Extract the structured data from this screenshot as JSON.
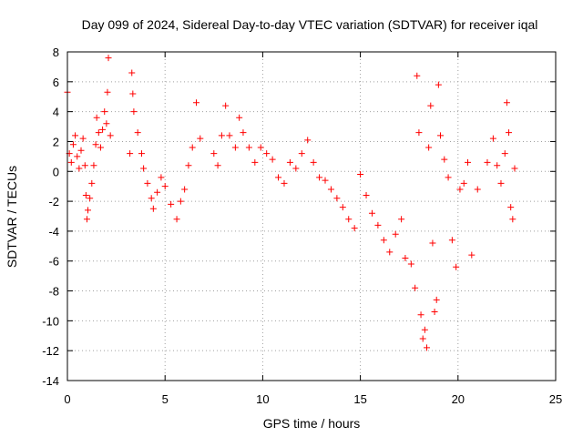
{
  "chart_data": {
    "type": "scatter",
    "title": "Day 099 of 2024, Sidereal Day-to-day VTEC variation (SDTVAR) for receiver iqal",
    "xlabel": "GPS time / hours",
    "ylabel": "SDTVAR / TECUs",
    "xlim": [
      0,
      25
    ],
    "ylim": [
      -14,
      8
    ],
    "xticks": [
      0,
      5,
      10,
      15,
      20,
      25
    ],
    "yticks": [
      -14,
      -12,
      -10,
      -8,
      -6,
      -4,
      -2,
      0,
      2,
      4,
      6,
      8
    ],
    "grid": true,
    "marker": "plus",
    "marker_color": "#ff0000",
    "series": [
      {
        "name": "SDTVAR",
        "points": [
          [
            0.0,
            5.3
          ],
          [
            0.1,
            1.2
          ],
          [
            0.2,
            0.6
          ],
          [
            0.3,
            1.8
          ],
          [
            0.4,
            2.4
          ],
          [
            0.5,
            1.0
          ],
          [
            0.6,
            0.2
          ],
          [
            0.7,
            1.4
          ],
          [
            0.8,
            2.2
          ],
          [
            0.9,
            0.4
          ],
          [
            0.95,
            -1.6
          ],
          [
            1.0,
            -3.2
          ],
          [
            1.05,
            -2.6
          ],
          [
            1.15,
            -1.8
          ],
          [
            1.25,
            -0.8
          ],
          [
            1.35,
            0.4
          ],
          [
            1.45,
            1.8
          ],
          [
            1.5,
            3.6
          ],
          [
            1.6,
            2.6
          ],
          [
            1.7,
            1.6
          ],
          [
            1.8,
            2.8
          ],
          [
            1.9,
            4.0
          ],
          [
            2.0,
            3.2
          ],
          [
            2.05,
            5.3
          ],
          [
            2.1,
            7.6
          ],
          [
            2.2,
            2.4
          ],
          [
            3.2,
            1.2
          ],
          [
            3.3,
            6.6
          ],
          [
            3.35,
            5.2
          ],
          [
            3.4,
            4.0
          ],
          [
            3.6,
            2.6
          ],
          [
            3.8,
            1.2
          ],
          [
            3.9,
            0.2
          ],
          [
            4.1,
            -0.8
          ],
          [
            4.3,
            -1.8
          ],
          [
            4.4,
            -2.5
          ],
          [
            4.6,
            -1.4
          ],
          [
            4.8,
            -0.4
          ],
          [
            5.0,
            -1.0
          ],
          [
            5.3,
            -2.2
          ],
          [
            5.6,
            -3.2
          ],
          [
            5.8,
            -2.0
          ],
          [
            6.0,
            -1.2
          ],
          [
            6.2,
            0.4
          ],
          [
            6.4,
            1.6
          ],
          [
            6.6,
            4.6
          ],
          [
            6.8,
            2.2
          ],
          [
            7.5,
            1.2
          ],
          [
            7.7,
            0.4
          ],
          [
            7.9,
            2.4
          ],
          [
            8.1,
            4.4
          ],
          [
            8.3,
            2.4
          ],
          [
            8.6,
            1.6
          ],
          [
            8.8,
            3.6
          ],
          [
            9.0,
            2.6
          ],
          [
            9.3,
            1.6
          ],
          [
            9.6,
            0.6
          ],
          [
            9.9,
            1.6
          ],
          [
            10.2,
            1.2
          ],
          [
            10.5,
            0.8
          ],
          [
            10.8,
            -0.4
          ],
          [
            11.1,
            -0.8
          ],
          [
            11.4,
            0.6
          ],
          [
            11.7,
            0.2
          ],
          [
            12.0,
            1.2
          ],
          [
            12.3,
            2.1
          ],
          [
            12.6,
            0.6
          ],
          [
            12.9,
            -0.4
          ],
          [
            13.2,
            -0.6
          ],
          [
            13.5,
            -1.2
          ],
          [
            13.8,
            -1.8
          ],
          [
            14.1,
            -2.4
          ],
          [
            14.4,
            -3.2
          ],
          [
            14.7,
            -3.8
          ],
          [
            15.0,
            -0.2
          ],
          [
            15.3,
            -1.6
          ],
          [
            15.6,
            -2.8
          ],
          [
            15.9,
            -3.6
          ],
          [
            16.2,
            -4.6
          ],
          [
            16.5,
            -5.4
          ],
          [
            16.8,
            -4.2
          ],
          [
            17.1,
            -3.2
          ],
          [
            17.3,
            -5.8
          ],
          [
            17.6,
            -6.2
          ],
          [
            17.8,
            -7.8
          ],
          [
            17.9,
            6.4
          ],
          [
            18.0,
            2.6
          ],
          [
            18.1,
            -9.6
          ],
          [
            18.2,
            -11.2
          ],
          [
            18.3,
            -10.6
          ],
          [
            18.4,
            -11.8
          ],
          [
            18.5,
            1.6
          ],
          [
            18.6,
            4.4
          ],
          [
            18.7,
            -4.8
          ],
          [
            18.8,
            -9.4
          ],
          [
            18.9,
            -8.6
          ],
          [
            19.0,
            5.8
          ],
          [
            19.1,
            2.4
          ],
          [
            19.3,
            0.8
          ],
          [
            19.5,
            -0.4
          ],
          [
            19.7,
            -4.6
          ],
          [
            19.9,
            -6.4
          ],
          [
            20.1,
            -1.2
          ],
          [
            20.3,
            -0.8
          ],
          [
            20.5,
            0.6
          ],
          [
            20.7,
            -5.6
          ],
          [
            21.0,
            -1.2
          ],
          [
            21.5,
            0.6
          ],
          [
            21.8,
            2.2
          ],
          [
            22.0,
            0.4
          ],
          [
            22.2,
            -0.8
          ],
          [
            22.4,
            1.2
          ],
          [
            22.5,
            4.6
          ],
          [
            22.6,
            2.6
          ],
          [
            22.7,
            -2.4
          ],
          [
            22.8,
            -3.2
          ],
          [
            22.9,
            0.2
          ]
        ]
      }
    ]
  }
}
